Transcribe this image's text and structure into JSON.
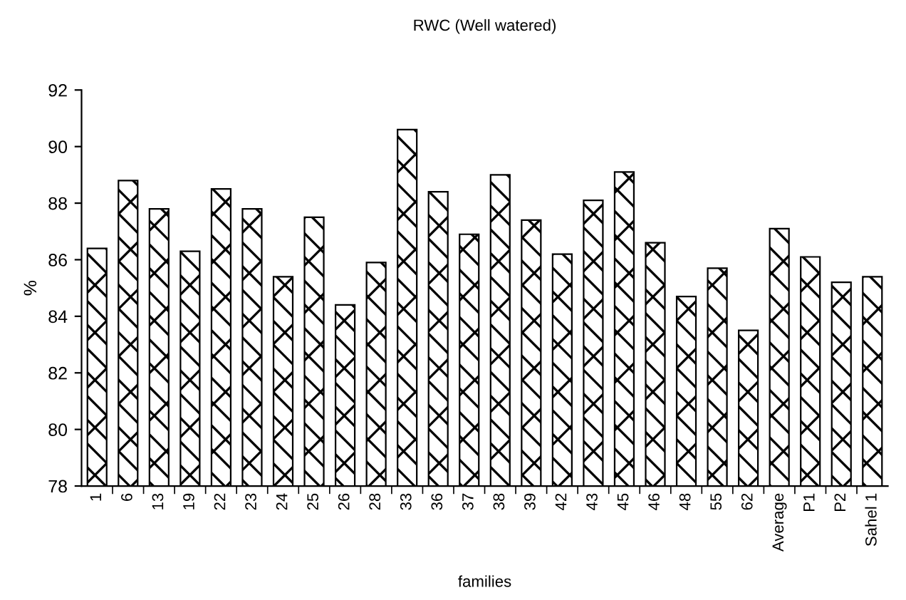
{
  "chart_data": {
    "type": "bar",
    "title": "RWC (Well watered)",
    "xlabel": "families",
    "ylabel": "%",
    "categories": [
      "1",
      "6",
      "13",
      "19",
      "22",
      "23",
      "24",
      "25",
      "26",
      "28",
      "33",
      "36",
      "37",
      "38",
      "39",
      "42",
      "43",
      "45",
      "46",
      "48",
      "55",
      "62",
      "Average",
      "P1",
      "P2",
      "Sahel 1"
    ],
    "values": [
      86.4,
      88.8,
      87.8,
      86.3,
      88.5,
      87.8,
      85.4,
      87.5,
      84.4,
      85.9,
      90.6,
      88.4,
      86.9,
      89.0,
      87.4,
      86.2,
      88.1,
      89.1,
      86.6,
      84.7,
      85.7,
      83.5,
      87.1,
      86.1,
      85.2,
      85.4
    ],
    "color": "#000000",
    "ylim": [
      78,
      92
    ],
    "yticks": [
      78,
      80,
      82,
      84,
      86,
      88,
      90,
      92
    ],
    "grid": false,
    "legend": false
  }
}
